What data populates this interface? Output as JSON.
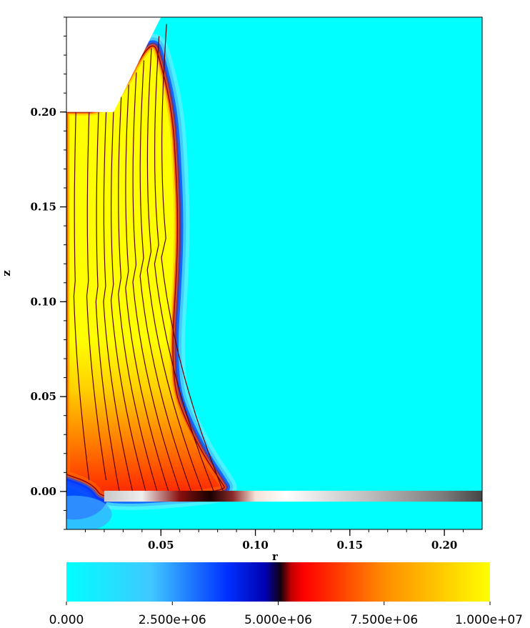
{
  "chart_data": {
    "type": "heatmap",
    "title": "",
    "xlabel": "r",
    "ylabel": "z",
    "xlim": [
      0.0,
      0.22
    ],
    "ylim": [
      -0.02,
      0.25
    ],
    "xticks": [
      0.05,
      0.1,
      0.15,
      0.2
    ],
    "xtick_labels": [
      "0.05",
      "0.10",
      "0.15",
      "0.20"
    ],
    "yticks": [
      0.0,
      0.05,
      0.1,
      0.15,
      0.2
    ],
    "ytick_labels": [
      "0.00",
      "0.05",
      "0.10",
      "0.15",
      "0.20"
    ],
    "background_value": 0,
    "colorbar": {
      "range": [
        0,
        10000000
      ],
      "tick_values": [
        0,
        2500000,
        5000000,
        7500000,
        10000000
      ],
      "tick_labels": [
        "0.000",
        "2.500e+06",
        "5.000e+06",
        "7.500e+06",
        "1.000e+07"
      ],
      "colors": [
        "#00ffff",
        "#0000ff",
        "#000033",
        "#ff0000",
        "#ff8c00",
        "#ffff00"
      ]
    },
    "region_boundary": [
      [
        0.0,
        0.2
      ],
      [
        0.024,
        0.2
      ],
      [
        0.045,
        0.24
      ],
      [
        0.05,
        0.226
      ],
      [
        0.056,
        0.2
      ],
      [
        0.058,
        0.17
      ],
      [
        0.059,
        0.14
      ],
      [
        0.058,
        0.11
      ],
      [
        0.056,
        0.08
      ],
      [
        0.057,
        0.055
      ],
      [
        0.062,
        0.04
      ],
      [
        0.072,
        0.02
      ],
      [
        0.082,
        0.005
      ],
      [
        0.085,
        0.0
      ],
      [
        0.02,
        -0.005
      ],
      [
        0.014,
        0.004
      ],
      [
        0.0,
        0.009
      ]
    ],
    "streamlines_r_at_top": [
      0.005,
      0.012,
      0.017,
      0.021,
      0.025,
      0.029,
      0.033,
      0.037,
      0.041,
      0.045,
      0.049,
      0.053
    ],
    "streamlines_r_at_base": [
      0.012,
      0.021,
      0.028,
      0.035,
      0.042,
      0.048,
      0.054,
      0.06,
      0.066,
      0.072,
      0.078,
      0.083
    ],
    "geometry": {
      "notch_top_left": [
        [
          0.0,
          0.2
        ],
        [
          0.025,
          0.2
        ],
        [
          0.05,
          0.25
        ],
        [
          0.0,
          0.25
        ]
      ],
      "electrode_bar": {
        "r": [
          0.02,
          0.22
        ],
        "z": [
          -0.005,
          0.0
        ]
      }
    }
  }
}
